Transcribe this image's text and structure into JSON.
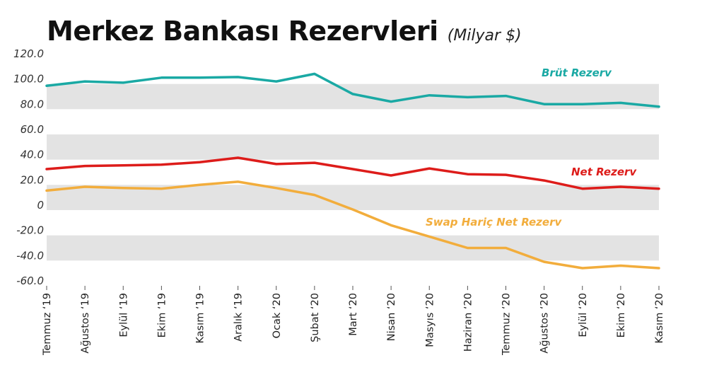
{
  "chart_data": {
    "type": "line",
    "title": "Merkez Bankası Rezervleri",
    "subtitle": "(Milyar $)",
    "categories": [
      "Temmuz ‘19",
      "Ağustos ‘19",
      "Eylül ‘19",
      "Ekim ‘19",
      "Kasım ‘19",
      "Aralık ‘19",
      "Ocak ‘20",
      "Şubat ‘20",
      "Mart ‘20",
      "Nisan ‘20",
      "Masyıs ‘20",
      "Haziran ‘20",
      "Temmuz ‘20",
      "Ağustos ‘20",
      "Eylül ‘20",
      "Ekim ‘20",
      "Kasım ‘20"
    ],
    "yticks": [
      "120.0",
      "100.0",
      "80.0",
      "60.0",
      "40.0",
      "20.0",
      "0",
      "-20.0",
      "-40.0",
      "-60.0"
    ],
    "ylim": [
      -60,
      120
    ],
    "grid": "alternating horizontal bands",
    "series": [
      {
        "name": "Brüt Rezerv",
        "color": "#1aa9a4",
        "values": [
          98.5,
          102,
          101,
          105,
          105,
          105.5,
          102,
          108,
          92,
          86,
          91,
          89.5,
          90.5,
          84,
          84,
          85,
          82
        ]
      },
      {
        "name": "Net Rezerv",
        "color": "#dd1c1a",
        "values": [
          32.5,
          35,
          35.5,
          36,
          38,
          41.5,
          36.5,
          37.5,
          32.5,
          27.5,
          33,
          28.5,
          28,
          23.5,
          17,
          18.5,
          17
        ]
      },
      {
        "name": "Swap Hariç Net Rezerv",
        "color": "#f2ad3c",
        "values": [
          15.5,
          18.5,
          17.5,
          17,
          20,
          22.5,
          17.5,
          12,
          0.5,
          -12,
          -21,
          -30,
          -30,
          -41,
          -46,
          -44,
          -46
        ]
      }
    ]
  }
}
